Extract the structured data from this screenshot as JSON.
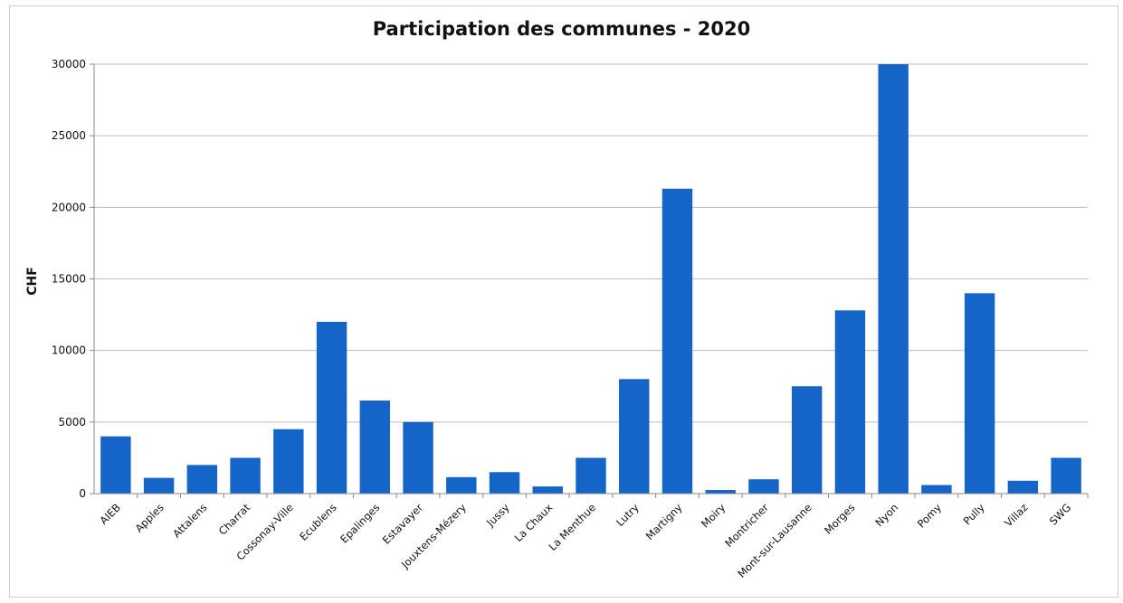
{
  "chart_data": {
    "type": "bar",
    "title": "Participation des communes - 2020",
    "xlabel": "",
    "ylabel": "CHF",
    "ylim": [
      0,
      30000
    ],
    "yticks": [
      0,
      5000,
      10000,
      15000,
      20000,
      25000,
      30000
    ],
    "grid": true,
    "legend": "none",
    "bar_color": "#1565c8",
    "categories": [
      "AIEB",
      "Apples",
      "Attalens",
      "Charrat",
      "Cossonay-Ville",
      "Ecublens",
      "Epalinges",
      "Estavayer",
      "Jouxtens-Mézery",
      "Jussy",
      "La Chaux",
      "La Menthue",
      "Lutry",
      "Martigny",
      "Moiry",
      "Montricher",
      "Mont-sur-Lausanne",
      "Morges",
      "Nyon",
      "Pomy",
      "Pully",
      "Villaz",
      "SWG"
    ],
    "values": [
      4000,
      1100,
      2000,
      2500,
      4500,
      12000,
      6500,
      5000,
      1150,
      1500,
      500,
      2500,
      8000,
      21300,
      250,
      1000,
      7500,
      12800,
      30000,
      600,
      14000,
      900,
      2500
    ]
  }
}
